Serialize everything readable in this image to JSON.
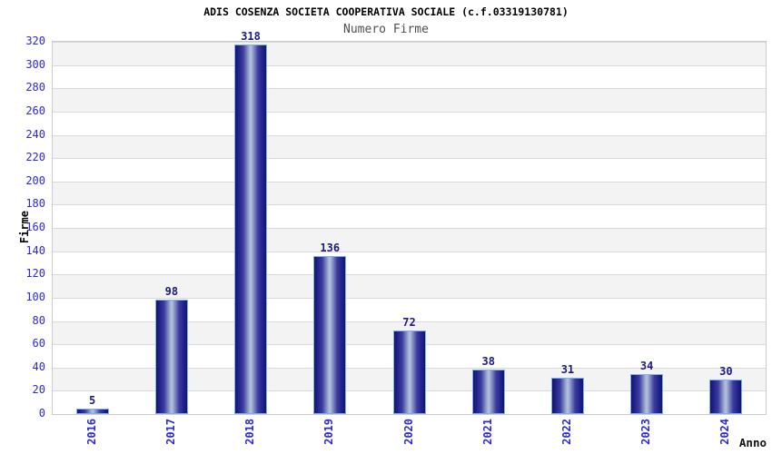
{
  "chart_data": {
    "type": "bar",
    "title": "ADIS COSENZA SOCIETA COOPERATIVA SOCIALE (c.f.03319130781)",
    "subtitle": "Numero Firme",
    "categories": [
      "2016",
      "2017",
      "2018",
      "2019",
      "2020",
      "2021",
      "2022",
      "2023",
      "2024"
    ],
    "values": [
      5,
      98,
      318,
      136,
      72,
      38,
      31,
      34,
      30
    ],
    "xlabel": "Anno",
    "ylabel": "Firme",
    "ylim": [
      0,
      320
    ],
    "ytick_step": 20,
    "yticks": [
      0,
      20,
      40,
      60,
      80,
      100,
      120,
      140,
      160,
      180,
      200,
      220,
      240,
      260,
      280,
      300,
      320
    ],
    "grid": true,
    "band_alternating": true,
    "legend": "none",
    "colors": {
      "title": "#000000",
      "subtitle": "#4f4f4f",
      "axis_text": "#2a2ad0",
      "value_label": "#1b1b85",
      "bar_dark": "#15156b",
      "bar_light": "#b7c3e3",
      "bar_border": "#7db3ea",
      "band_gray": "#f3f3f3",
      "gridline": "#dadada",
      "x_axis_title": "#111111"
    }
  }
}
